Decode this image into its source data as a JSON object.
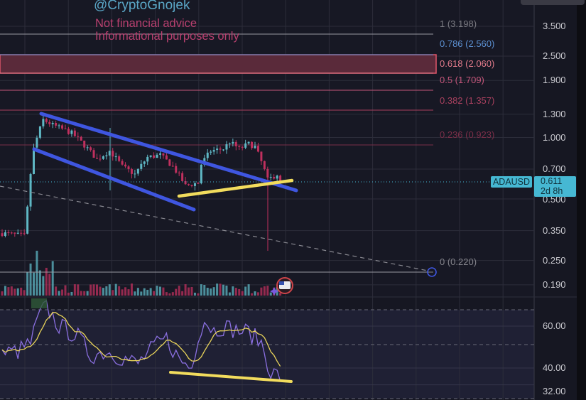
{
  "watermark": {
    "handle": "@CryptoGnojek",
    "disclaimer_1": "Not financial advice",
    "disclaimer_2": "Informational purposes only"
  },
  "symbol": {
    "name": "ADAUSD",
    "price": "0.611",
    "countdown": "2d 8h"
  },
  "price_axis": {
    "scale": "log",
    "ticks": [
      "3.500",
      "2.500",
      "1.900",
      "1.300",
      "1.000",
      "0.700",
      "0.500",
      "0.350",
      "0.250",
      "0.190"
    ]
  },
  "rsi_axis": {
    "ticks": [
      "60.00",
      "40.00",
      "32.00"
    ]
  },
  "fib_levels": [
    {
      "label": "1 (3.198)",
      "ratio": 1,
      "price": 3.198,
      "color": "#7b7b82"
    },
    {
      "label": "0.786 (2.560)",
      "ratio": 0.786,
      "price": 2.56,
      "color": "#5b8fd0"
    },
    {
      "label": "0.618 (2.060)",
      "ratio": 0.618,
      "price": 2.06,
      "color": "#e07a8a"
    },
    {
      "label": "0.5 (1.709)",
      "ratio": 0.5,
      "price": 1.709,
      "color": "#c3567a"
    },
    {
      "label": "0.382 (1.357)",
      "ratio": 0.382,
      "price": 1.357,
      "color": "#a8405e"
    },
    {
      "label": "0.236 (0.923)",
      "ratio": 0.236,
      "price": 0.923,
      "color": "#7a2e48"
    },
    {
      "label": "0 (0.220)",
      "ratio": 0,
      "price": 0.22,
      "color": "#85858c"
    }
  ],
  "colors": {
    "background": "#161722",
    "up_candle": "#5fb7c4",
    "down_candle": "#c0305e",
    "channel": "#3f56e0",
    "support": "#f2dc5d",
    "rsi": "#8a6fe0",
    "rsi_ma": "#e8d35a",
    "highlight": "#46b8d3"
  },
  "price_path": [
    [
      0,
      0.34
    ],
    [
      7,
      0.33
    ],
    [
      8,
      0.45
    ],
    [
      10,
      0.88
    ],
    [
      13,
      1.22
    ],
    [
      16,
      1.15
    ],
    [
      22,
      1.05
    ],
    [
      25,
      0.95
    ],
    [
      30,
      0.78
    ],
    [
      34,
      0.86
    ],
    [
      38,
      0.72
    ],
    [
      42,
      0.66
    ],
    [
      46,
      0.8
    ],
    [
      50,
      0.82
    ],
    [
      54,
      0.72
    ],
    [
      58,
      0.58
    ],
    [
      62,
      0.6
    ],
    [
      63,
      0.74
    ],
    [
      66,
      0.86
    ],
    [
      70,
      0.88
    ],
    [
      72,
      0.95
    ],
    [
      75,
      0.88
    ],
    [
      78,
      0.93
    ],
    [
      80,
      0.9
    ],
    [
      84,
      0.62
    ],
    [
      87,
      0.66
    ],
    [
      88,
      0.611
    ]
  ],
  "rsi_path": [
    [
      0,
      47
    ],
    [
      5,
      48
    ],
    [
      9,
      52
    ],
    [
      12,
      66
    ],
    [
      14,
      69
    ],
    [
      18,
      60
    ],
    [
      24,
      55
    ],
    [
      28,
      46
    ],
    [
      33,
      48
    ],
    [
      38,
      45
    ],
    [
      43,
      42
    ],
    [
      48,
      50
    ],
    [
      52,
      54
    ],
    [
      56,
      44
    ],
    [
      60,
      40
    ],
    [
      62,
      56
    ],
    [
      64,
      63
    ],
    [
      67,
      58
    ],
    [
      70,
      60
    ],
    [
      74,
      58
    ],
    [
      78,
      57
    ],
    [
      82,
      52
    ],
    [
      85,
      38
    ],
    [
      88,
      36
    ]
  ]
}
